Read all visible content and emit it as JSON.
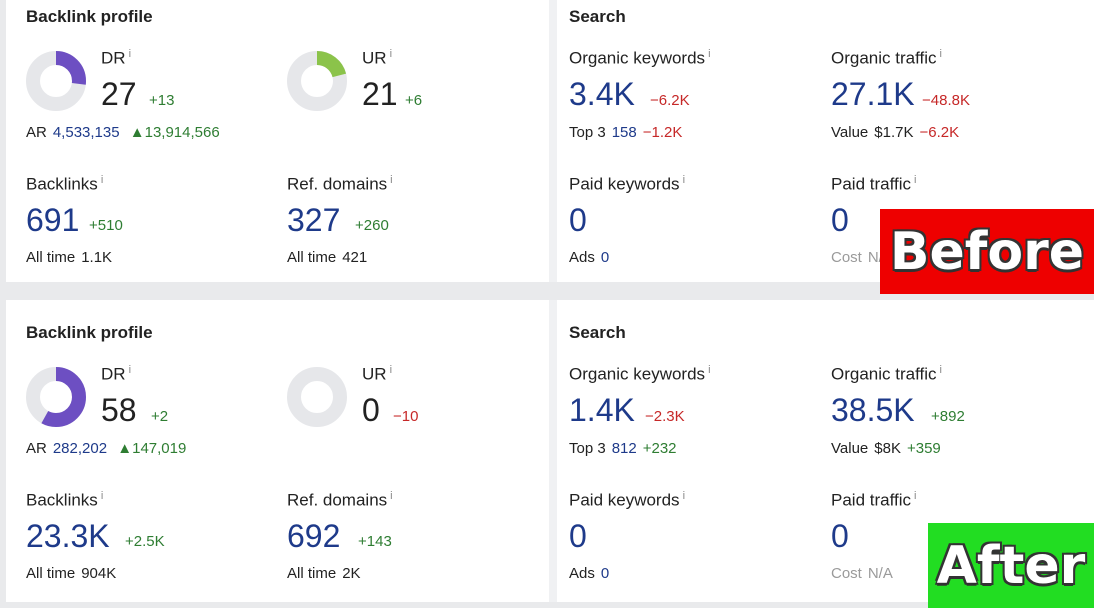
{
  "panels": [
    {
      "backlink_title": "Backlink profile",
      "search_title": "Search",
      "dr": {
        "label": "DR",
        "info": "i",
        "value": "27",
        "delta": "+13",
        "donut_fraction": 0.27,
        "donut_color": "#6d4fc2"
      },
      "ur": {
        "label": "UR",
        "info": "i",
        "value": "21",
        "delta": "+6",
        "donut_fraction": 0.21,
        "donut_color": "#8bc34a"
      },
      "ar": {
        "label": "AR",
        "value": "4,533,135",
        "delta": "13,914,566"
      },
      "backlinks": {
        "label": "Backlinks",
        "info": "i",
        "value": "691",
        "delta": "+510",
        "sub_label": "All time",
        "sub_value": "1.1K"
      },
      "ref_domains": {
        "label": "Ref. domains",
        "info": "i",
        "value": "327",
        "delta": "+260",
        "sub_label": "All time",
        "sub_value": "421"
      },
      "organic_keywords": {
        "label": "Organic keywords",
        "info": "i",
        "value": "3.4K",
        "delta": "−6.2K",
        "sub_label": "Top 3",
        "sub_value": "158",
        "sub_delta": "−1.2K"
      },
      "organic_traffic": {
        "label": "Organic traffic",
        "info": "i",
        "value": "27.1K",
        "delta": "−48.8K",
        "sub_label": "Value",
        "sub_value": "$1.7K",
        "sub_delta": "−6.2K"
      },
      "paid_keywords": {
        "label": "Paid keywords",
        "info": "i",
        "value": "0",
        "sub_label": "Ads",
        "sub_value": "0"
      },
      "paid_traffic": {
        "label": "Paid traffic",
        "info": "i",
        "value": "0",
        "sub_label": "Cost",
        "sub_value": "N/A"
      },
      "stamp": {
        "text": "Before",
        "color": "#ee0000"
      }
    },
    {
      "backlink_title": "Backlink profile",
      "search_title": "Search",
      "dr": {
        "label": "DR",
        "info": "i",
        "value": "58",
        "delta": "+2",
        "donut_fraction": 0.58,
        "donut_color": "#6d4fc2"
      },
      "ur": {
        "label": "UR",
        "info": "i",
        "value": "0",
        "delta": "−10",
        "donut_fraction": 0,
        "donut_color": "#8bc34a"
      },
      "ar": {
        "label": "AR",
        "value": "282,202",
        "delta": "147,019"
      },
      "backlinks": {
        "label": "Backlinks",
        "info": "i",
        "value": "23.3K",
        "delta": "+2.5K",
        "sub_label": "All time",
        "sub_value": "904K"
      },
      "ref_domains": {
        "label": "Ref. domains",
        "info": "i",
        "value": "692",
        "delta": "+143",
        "sub_label": "All time",
        "sub_value": "2K"
      },
      "organic_keywords": {
        "label": "Organic keywords",
        "info": "i",
        "value": "1.4K",
        "delta": "−2.3K",
        "sub_label": "Top 3",
        "sub_value": "812",
        "sub_delta": "+232"
      },
      "organic_traffic": {
        "label": "Organic traffic",
        "info": "i",
        "value": "38.5K",
        "delta": "+892",
        "sub_label": "Value",
        "sub_value": "$8K",
        "sub_delta": "+359"
      },
      "paid_keywords": {
        "label": "Paid keywords",
        "info": "i",
        "value": "0",
        "sub_label": "Ads",
        "sub_value": "0"
      },
      "paid_traffic": {
        "label": "Paid traffic",
        "info": "i",
        "value": "0",
        "sub_label": "Cost",
        "sub_value": "N/A"
      },
      "stamp": {
        "text": "After",
        "color": "#22dd22"
      }
    }
  ]
}
